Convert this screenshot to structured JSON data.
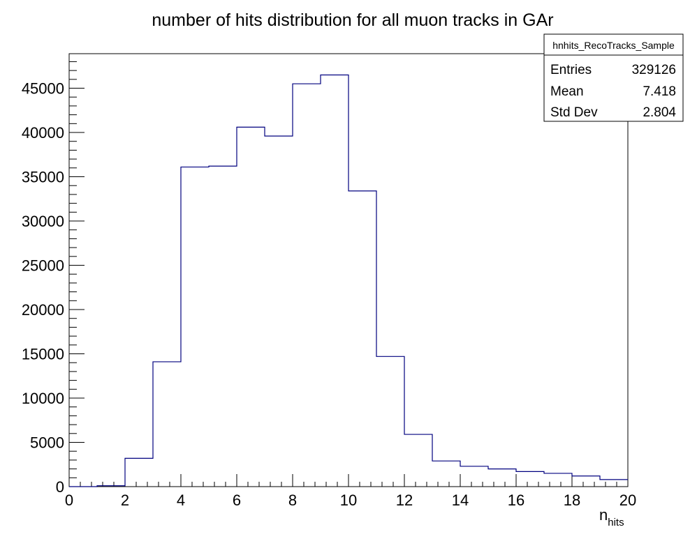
{
  "chart_data": {
    "type": "histogram",
    "title": "number of hits distribution for all muon tracks in GAr",
    "xlabel": "n",
    "xlabel_sub": "hits",
    "ylabel": "",
    "xlim": [
      0,
      20
    ],
    "ylim": [
      0,
      48900
    ],
    "x_ticks": [
      0,
      2,
      4,
      6,
      8,
      10,
      12,
      14,
      16,
      18,
      20
    ],
    "y_ticks": [
      0,
      5000,
      10000,
      15000,
      20000,
      25000,
      30000,
      35000,
      40000,
      45000
    ],
    "grid": false,
    "bin_edges": [
      0,
      1,
      2,
      3,
      4,
      5,
      6,
      7,
      8,
      9,
      10,
      11,
      12,
      13,
      14,
      15,
      16,
      17,
      18,
      19,
      20
    ],
    "values": [
      0,
      100,
      3200,
      14100,
      36100,
      36200,
      40600,
      39600,
      45500,
      46500,
      33400,
      14700,
      5900,
      2900,
      2300,
      2000,
      1700,
      1500,
      1200,
      800
    ],
    "line_color": "#00007f",
    "stats_box": {
      "name": "hnhits_RecoTracks_Sample",
      "rows": [
        {
          "label": "Entries",
          "value": "329126"
        },
        {
          "label": "Mean",
          "value": "7.418"
        },
        {
          "label": "Std Dev",
          "value": "2.804"
        }
      ]
    }
  }
}
